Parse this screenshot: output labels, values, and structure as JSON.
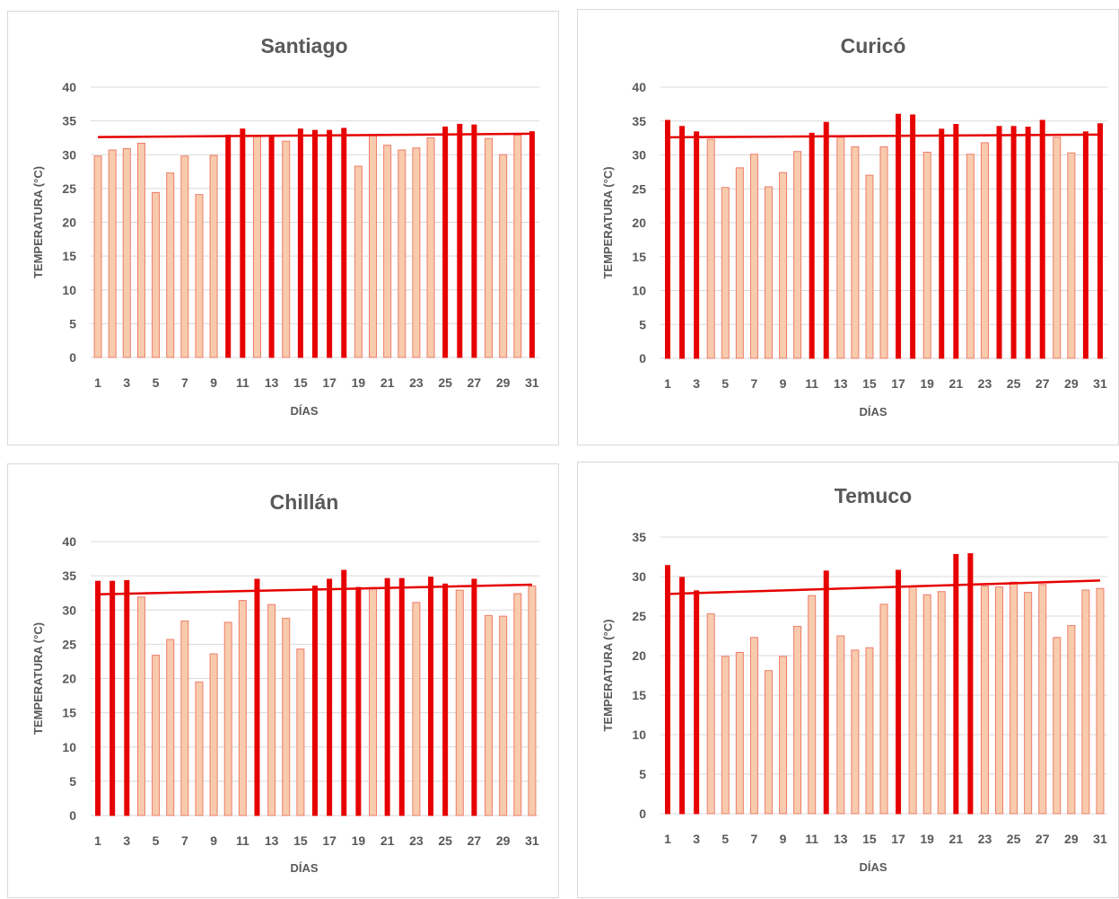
{
  "colors": {
    "bar_high": "#e60000",
    "bar_low_fill": "#f8cbad",
    "bar_low_stroke": "#ed7d6b",
    "trend": "#e60000",
    "text": "#595959",
    "grid": "#d9d9d9"
  },
  "chart_data": [
    {
      "type": "bar",
      "title": "Santiago",
      "xlabel": "DÍAS",
      "ylabel": "TEMPERATURA (°C)",
      "ylim": [
        0,
        40
      ],
      "yticks": [
        0,
        5,
        10,
        15,
        20,
        25,
        30,
        35,
        40
      ],
      "x": [
        1,
        2,
        3,
        4,
        5,
        6,
        7,
        8,
        9,
        10,
        11,
        12,
        13,
        14,
        15,
        16,
        17,
        18,
        19,
        20,
        21,
        22,
        23,
        24,
        25,
        26,
        27,
        28,
        29,
        30,
        31
      ],
      "xtick_labels": [
        "1",
        "3",
        "5",
        "7",
        "9",
        "11",
        "13",
        "15",
        "17",
        "19",
        "21",
        "23",
        "25",
        "27",
        "29",
        "31"
      ],
      "values": [
        29.8,
        30.7,
        30.9,
        31.7,
        24.4,
        27.3,
        29.8,
        24.1,
        29.9,
        32.9,
        33.8,
        32.9,
        32.9,
        32.0,
        33.8,
        33.6,
        33.6,
        33.9,
        28.3,
        32.9,
        31.4,
        30.7,
        31.0,
        32.5,
        34.1,
        34.5,
        34.4,
        32.4,
        30.0,
        32.9,
        33.4
      ],
      "highlighted": [
        false,
        false,
        false,
        false,
        false,
        false,
        false,
        false,
        false,
        true,
        true,
        false,
        true,
        false,
        true,
        true,
        true,
        true,
        false,
        false,
        false,
        false,
        false,
        false,
        true,
        true,
        true,
        false,
        false,
        false,
        true
      ],
      "trend": [
        32.6,
        33.1
      ],
      "grid": true,
      "legend": "none"
    },
    {
      "type": "bar",
      "title": "Curicó",
      "xlabel": "DÍAS",
      "ylabel": "TEMPERATURA (°C)",
      "ylim": [
        0,
        40
      ],
      "yticks": [
        0,
        5,
        10,
        15,
        20,
        25,
        30,
        35,
        40
      ],
      "x": [
        1,
        2,
        3,
        4,
        5,
        6,
        7,
        8,
        9,
        10,
        11,
        12,
        13,
        14,
        15,
        16,
        17,
        18,
        19,
        20,
        21,
        22,
        23,
        24,
        25,
        26,
        27,
        28,
        29,
        30,
        31
      ],
      "xtick_labels": [
        "1",
        "3",
        "5",
        "7",
        "9",
        "11",
        "13",
        "15",
        "17",
        "19",
        "21",
        "23",
        "25",
        "27",
        "29",
        "31"
      ],
      "values": [
        35.1,
        34.2,
        33.4,
        32.3,
        25.2,
        28.1,
        30.1,
        25.3,
        27.4,
        30.5,
        33.2,
        34.8,
        32.6,
        31.2,
        27.0,
        31.2,
        36.0,
        35.9,
        30.4,
        33.8,
        34.5,
        30.1,
        31.8,
        34.2,
        34.2,
        34.1,
        35.1,
        32.6,
        30.3,
        33.4,
        34.6
      ],
      "highlighted": [
        true,
        true,
        true,
        false,
        false,
        false,
        false,
        false,
        false,
        false,
        true,
        true,
        false,
        false,
        false,
        false,
        true,
        true,
        false,
        true,
        true,
        false,
        false,
        true,
        true,
        true,
        true,
        false,
        false,
        true,
        true
      ],
      "trend": [
        32.6,
        33.0
      ],
      "grid": true,
      "legend": "none"
    },
    {
      "type": "bar",
      "title": "Chillán",
      "xlabel": "DÍAS",
      "ylabel": "TEMPERATURA (°C)",
      "ylim": [
        0,
        40
      ],
      "yticks": [
        0,
        5,
        10,
        15,
        20,
        25,
        30,
        35,
        40
      ],
      "x": [
        1,
        2,
        3,
        4,
        5,
        6,
        7,
        8,
        9,
        10,
        11,
        12,
        13,
        14,
        15,
        16,
        17,
        18,
        19,
        20,
        21,
        22,
        23,
        24,
        25,
        26,
        27,
        28,
        29,
        30,
        31
      ],
      "xtick_labels": [
        "1",
        "3",
        "5",
        "7",
        "9",
        "11",
        "13",
        "15",
        "17",
        "19",
        "21",
        "23",
        "25",
        "27",
        "29",
        "31"
      ],
      "values": [
        34.2,
        34.2,
        34.3,
        31.9,
        23.4,
        25.7,
        28.4,
        19.5,
        23.6,
        28.2,
        31.4,
        34.5,
        30.8,
        28.8,
        24.3,
        33.5,
        34.5,
        35.8,
        33.3,
        33.3,
        34.6,
        34.6,
        31.1,
        34.8,
        33.8,
        32.9,
        34.5,
        29.2,
        29.1,
        32.4,
        33.5
      ],
      "highlighted": [
        true,
        true,
        true,
        false,
        false,
        false,
        false,
        false,
        false,
        false,
        false,
        true,
        false,
        false,
        false,
        true,
        true,
        true,
        true,
        false,
        true,
        true,
        false,
        true,
        true,
        false,
        true,
        false,
        false,
        false,
        false
      ],
      "trend": [
        32.3,
        33.7
      ],
      "grid": true,
      "legend": "none"
    },
    {
      "type": "bar",
      "title": "Temuco",
      "xlabel": "DÍAS",
      "ylabel": "TEMPERATURA (°C)",
      "ylim": [
        0,
        35
      ],
      "yticks": [
        0,
        5,
        10,
        15,
        20,
        25,
        30,
        35
      ],
      "x": [
        1,
        2,
        3,
        4,
        5,
        6,
        7,
        8,
        9,
        10,
        11,
        12,
        13,
        14,
        15,
        16,
        17,
        18,
        19,
        20,
        21,
        22,
        23,
        24,
        25,
        26,
        27,
        28,
        29,
        30,
        31
      ],
      "xtick_labels": [
        "1",
        "3",
        "5",
        "7",
        "9",
        "11",
        "13",
        "15",
        "17",
        "19",
        "21",
        "23",
        "25",
        "27",
        "29",
        "31"
      ],
      "values": [
        31.4,
        29.9,
        28.2,
        25.3,
        19.9,
        20.4,
        22.3,
        18.1,
        19.9,
        23.7,
        27.6,
        30.7,
        22.5,
        20.7,
        21.0,
        26.5,
        30.8,
        28.8,
        27.7,
        28.1,
        32.8,
        32.9,
        28.8,
        28.7,
        29.3,
        28.0,
        29.0,
        22.3,
        23.8,
        28.3,
        28.5
      ],
      "highlighted": [
        true,
        true,
        true,
        false,
        false,
        false,
        false,
        false,
        false,
        false,
        false,
        true,
        false,
        false,
        false,
        false,
        true,
        false,
        false,
        false,
        true,
        true,
        false,
        false,
        false,
        false,
        false,
        false,
        false,
        false,
        false
      ],
      "trend": [
        27.8,
        29.5
      ],
      "grid": true,
      "legend": "none"
    }
  ]
}
